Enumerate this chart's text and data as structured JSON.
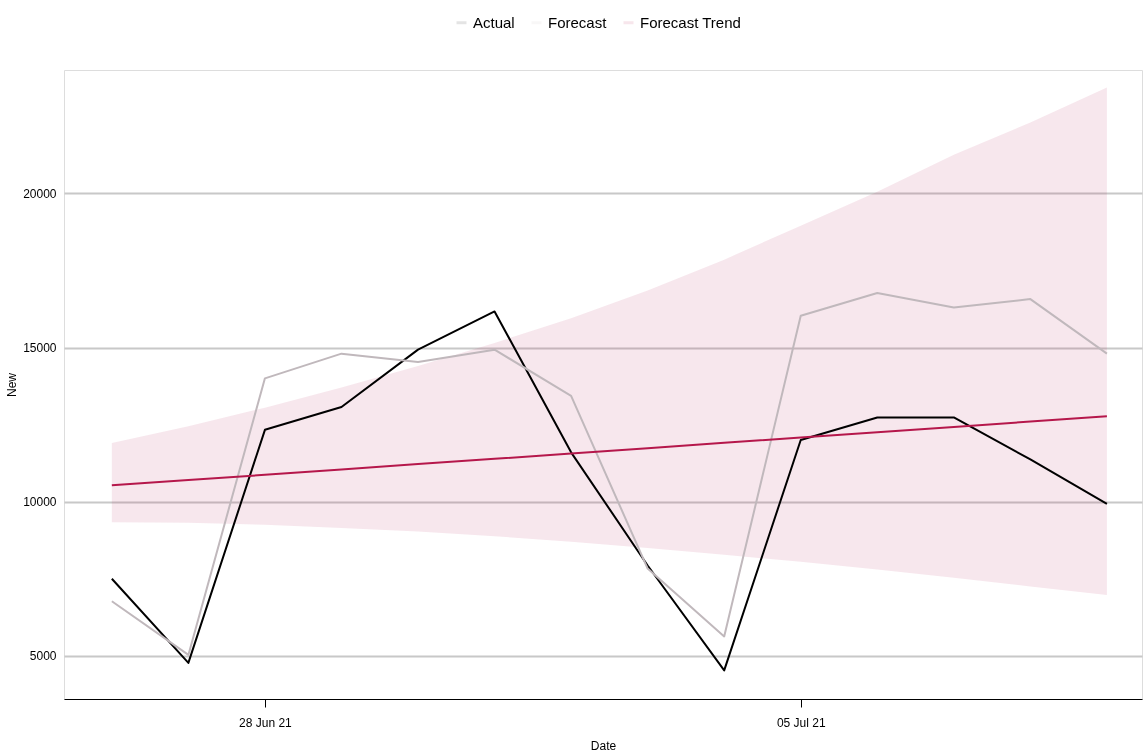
{
  "chart_data": {
    "type": "line",
    "xlabel": "Date",
    "ylabel": "New",
    "x": [
      "2021-06-26",
      "2021-06-27",
      "2021-06-28",
      "2021-06-29",
      "2021-06-30",
      "2021-07-01",
      "2021-07-02",
      "2021-07-03",
      "2021-07-04",
      "2021-07-05",
      "2021-07-06",
      "2021-07-07",
      "2021-07-08",
      "2021-07-09"
    ],
    "series": [
      {
        "name": "Actual",
        "color": "#000000",
        "values": [
          7500,
          4770,
          12330,
          13070,
          14930,
          16170,
          11600,
          7930,
          4530,
          12000,
          12730,
          12730,
          11370,
          9930
        ]
      },
      {
        "name": "Forecast",
        "color": "#c0b8bc",
        "values": [
          6770,
          5030,
          14000,
          14800,
          14530,
          14930,
          13430,
          7830,
          5630,
          16030,
          16770,
          16300,
          16570,
          14800
        ]
      },
      {
        "name": "Forecast Trend",
        "color": "#b5174b",
        "values": [
          10530,
          10700,
          10870,
          11040,
          11220,
          11390,
          11560,
          11730,
          11910,
          12080,
          12250,
          12420,
          12600,
          12770
        ],
        "lower": [
          9330,
          9320,
          9250,
          9150,
          9030,
          8880,
          8700,
          8500,
          8280,
          8050,
          7800,
          7530,
          7250,
          6970
        ],
        "upper": [
          11900,
          12450,
          13050,
          13700,
          14400,
          15150,
          15950,
          16850,
          17850,
          18950,
          20050,
          21250,
          22300,
          23430
        ]
      }
    ],
    "xlim": [
      "2021-06-25T09:00",
      "2021-07-09T11:00"
    ],
    "xticks": [
      {
        "value": "2021-06-28",
        "label": "28 Jun 21"
      },
      {
        "value": "2021-07-05",
        "label": "05 Jul 21"
      }
    ],
    "ylim": [
      3600,
      24000
    ],
    "yticks": [
      5000,
      10000,
      15000,
      20000
    ],
    "grid": "y",
    "legend": "top",
    "marker": "none",
    "line_style": "solid"
  }
}
